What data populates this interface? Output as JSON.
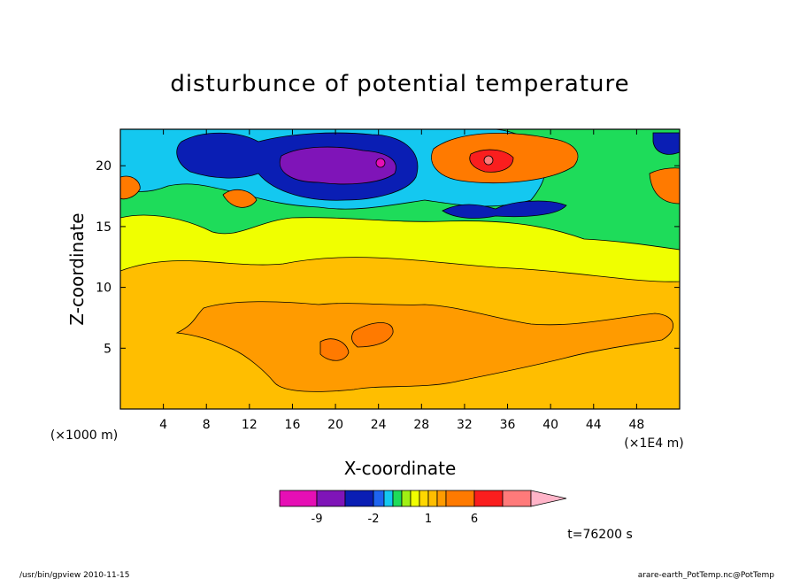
{
  "chart_data": {
    "type": "heatmap",
    "title": "disturbunce of potential temperature",
    "xlabel": "X-coordinate",
    "ylabel": "Z-coordinate",
    "x_unit": "(×1E4 m)",
    "y_unit": "(×1000 m)",
    "xlim": [
      0,
      52
    ],
    "ylim": [
      0,
      23
    ],
    "xticks": [
      4,
      8,
      12,
      16,
      20,
      24,
      28,
      32,
      36,
      40,
      44,
      48
    ],
    "yticks": [
      5,
      10,
      15,
      20
    ],
    "colorbar": {
      "levels": [
        -11,
        -9,
        -7,
        -2,
        -1.5,
        -1,
        -0.5,
        0,
        0.5,
        1,
        2,
        4,
        6,
        8,
        10
      ],
      "colors": [
        "#e60fb5",
        "#7f14b8",
        "#0a1eb4",
        "#1e64f0",
        "#14c8f0",
        "#1edc5a",
        "#a0f014",
        "#f0ff00",
        "#ffd700",
        "#ffbe00",
        "#ff9b00",
        "#ff7a00",
        "#fa1e1e",
        "#ff7a7a",
        "#ffb4c8"
      ],
      "tick_labels": [
        {
          "value": -9,
          "label": "-9"
        },
        {
          "value": -2,
          "label": "-2"
        },
        {
          "value": 1,
          "label": "1"
        },
        {
          "value": 6,
          "label": "6"
        }
      ],
      "extend": "max"
    },
    "regions": [
      {
        "name": "background",
        "value": 1.5
      },
      {
        "name": "lower-orange-band",
        "value": 3.0
      },
      {
        "name": "lower-core-1",
        "value": 5.0
      },
      {
        "name": "lower-core-2",
        "value": 5.0
      },
      {
        "name": "upper-yellow-band",
        "value": 0.3
      },
      {
        "name": "upper-green-band",
        "value": -0.8
      },
      {
        "name": "cyan-layer",
        "value": -1.3
      },
      {
        "name": "blue-trough",
        "value": -4.5
      },
      {
        "name": "deep-blue-core",
        "value": -8.0
      },
      {
        "name": "purple-center",
        "value": -10.0
      },
      {
        "name": "red-ridge",
        "value": 4.0
      },
      {
        "name": "red-core",
        "value": 7.0
      },
      {
        "name": "pink-center",
        "value": 9.0
      },
      {
        "name": "left-ridge",
        "value": 5.0
      },
      {
        "name": "right-ridge",
        "value": 5.0
      }
    ]
  },
  "annotation": "t=76200 s",
  "footer": {
    "left": "/usr/bin/gpview   2010-11-15",
    "right": "arare-earth_PotTemp.nc@PotTemp"
  }
}
